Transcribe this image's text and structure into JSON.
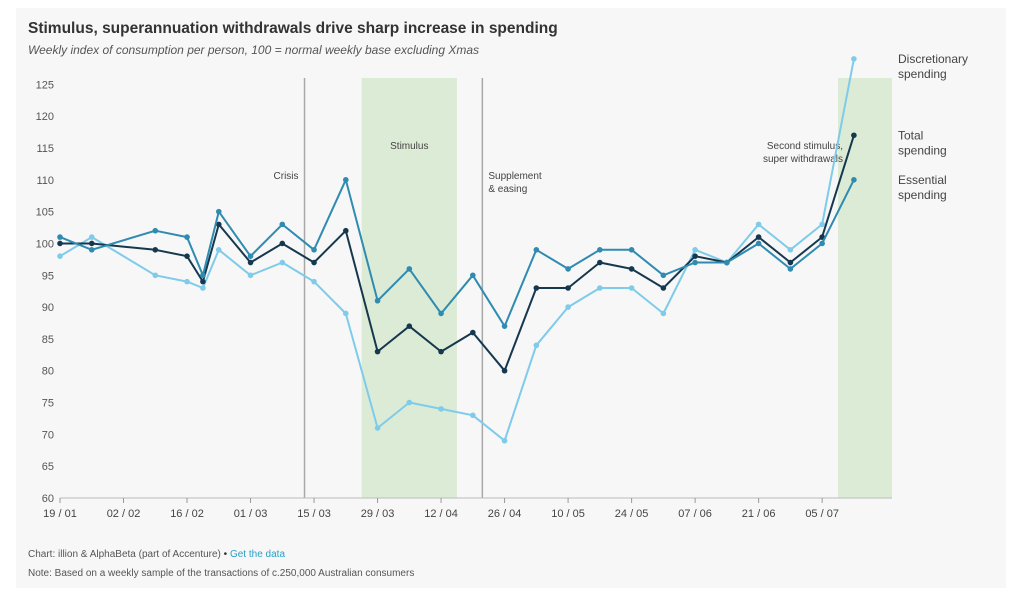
{
  "title": "Stimulus, superannuation withdrawals drive sharp increase in spending",
  "subtitle": "Weekly index of consumption per person, 100 = normal weekly base excluding Xmas",
  "footer": {
    "source": "Chart: illion & AlphaBeta (part of Accenture)",
    "separator": "•",
    "link": "Get the data",
    "note": "Note: Based on a weekly sample of the transactions of c.250,000 Australian consumers"
  },
  "colors": {
    "discretionary": "#7ecbea",
    "total": "#16384f",
    "essential": "#2f8bb0",
    "shade": "#dcebd5",
    "vline": "#a8a8a8"
  },
  "chart_data": {
    "type": "line",
    "title": "Stimulus, superannuation withdrawals drive sharp increase in spending",
    "subtitle": "Weekly index of consumption per person, 100 = normal weekly base excluding Xmas",
    "ylim": [
      60,
      126
    ],
    "yticks": [
      60,
      65,
      70,
      75,
      80,
      85,
      90,
      95,
      100,
      105,
      110,
      115,
      120,
      125
    ],
    "xticks": [
      "19 / 01",
      "02 / 02",
      "16 / 02",
      "01 / 03",
      "15 / 03",
      "29 / 03",
      "12 / 04",
      "26 / 04",
      "10 / 05",
      "24 / 05",
      "07 / 06",
      "21 / 06",
      "05 / 07"
    ],
    "x": [
      0,
      1,
      3,
      4,
      4.5,
      5,
      6,
      7,
      8,
      9,
      10,
      11,
      12,
      13,
      14,
      15,
      16,
      17,
      18,
      19,
      20,
      21,
      22,
      23,
      24,
      25
    ],
    "series": [
      {
        "name": "Discretionary spending",
        "color_key": "discretionary",
        "values": [
          98,
          101,
          95,
          94,
          93,
          99,
          95,
          97,
          94,
          89,
          71,
          75,
          74,
          73,
          69,
          84,
          90,
          93,
          93,
          89,
          99,
          97,
          103,
          99,
          103,
          129
        ]
      },
      {
        "name": "Total spending",
        "color_key": "total",
        "values": [
          100,
          100,
          99,
          98,
          94,
          103,
          97,
          100,
          97,
          102,
          83,
          87,
          83,
          86,
          80,
          93,
          93,
          97,
          96,
          93,
          98,
          97,
          101,
          97,
          101,
          117
        ]
      },
      {
        "name": "Essential spending",
        "color_key": "essential",
        "values": [
          101,
          99,
          102,
          101,
          95,
          105,
          98,
          103,
          99,
          110,
          91,
          96,
          89,
          95,
          87,
          99,
          96,
          99,
          99,
          95,
          97,
          97,
          100,
          96,
          100,
          110
        ]
      }
    ],
    "shaded_periods": [
      {
        "label": "Stimulus",
        "x_start": 9.5,
        "x_end": 12.5
      },
      {
        "label": "Second stimulus, super withdrawals",
        "x_start": 24.5,
        "x_end": 26.2
      }
    ],
    "event_lines": [
      {
        "label": "Crisis",
        "x": 7.7
      },
      {
        "label": "Supplement & easing",
        "x": 13.3
      }
    ],
    "grid": false,
    "legend": "inline labels at right"
  }
}
